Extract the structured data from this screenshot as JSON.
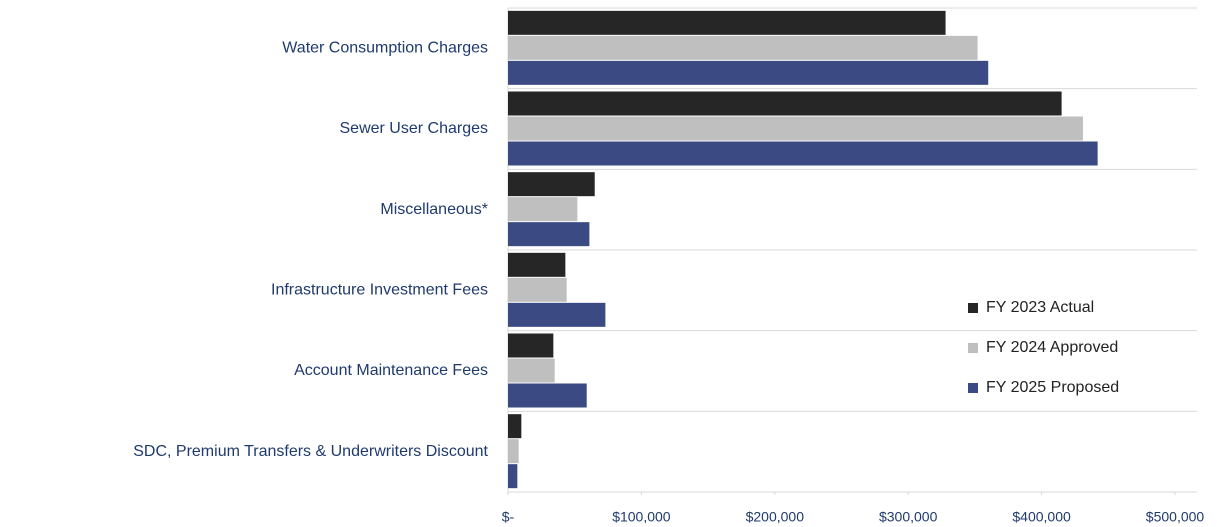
{
  "chart_data": {
    "type": "barh",
    "categories": [
      "Water Consumption Charges",
      "Sewer User Charges",
      "Miscellaneous*",
      "Infrastructure Investment Fees",
      "Account Maintenance Fees",
      "SDC, Premium Transfers & Underwriters Discount"
    ],
    "series": [
      {
        "name": "FY 2023 Actual",
        "color": "#262626",
        "values": [
          328000,
          415000,
          65000,
          43000,
          34000,
          10000
        ]
      },
      {
        "name": "FY 2024 Approved",
        "color": "#bfbfbf",
        "values": [
          352000,
          431000,
          52000,
          44000,
          35000,
          8000
        ]
      },
      {
        "name": "FY 2025 Proposed",
        "color": "#3b4a82",
        "values": [
          360000,
          442000,
          61000,
          73000,
          59000,
          7000
        ]
      }
    ],
    "xlim": [
      0,
      500000
    ],
    "xticks": [
      {
        "value": 0,
        "label": "$-"
      },
      {
        "value": 100000,
        "label": "$100,000"
      },
      {
        "value": 200000,
        "label": "$200,000"
      },
      {
        "value": 300000,
        "label": "$300,000"
      },
      {
        "value": 400000,
        "label": "$400,000"
      },
      {
        "value": 500000,
        "label": "$500,000"
      }
    ],
    "legend": "right"
  }
}
